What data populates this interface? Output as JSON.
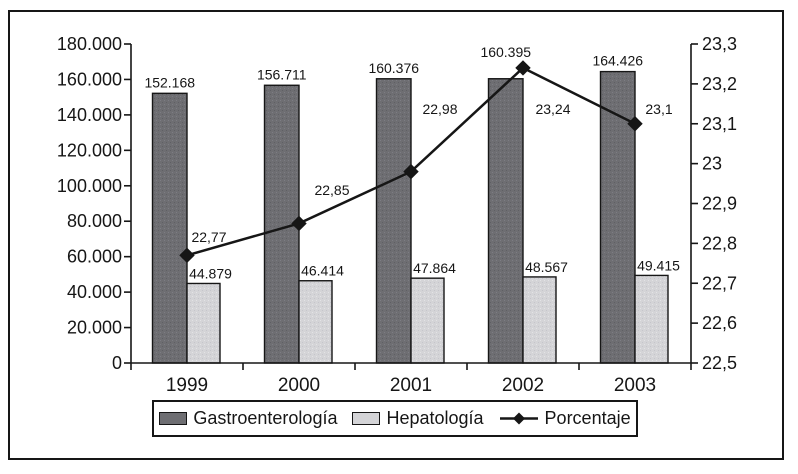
{
  "chart_data": {
    "type": "bar+line",
    "title": "",
    "categories": [
      "1999",
      "2000",
      "2001",
      "2002",
      "2003"
    ],
    "series": [
      {
        "name": "Gastroenterología",
        "type": "bar",
        "axis": "left",
        "values": [
          152168,
          156711,
          160376,
          160395,
          164426
        ],
        "value_labels": [
          "152.168",
          "156.711",
          "160.376",
          "160.395",
          "164.426"
        ],
        "color": "#6e6e72"
      },
      {
        "name": "Hepatología",
        "type": "bar",
        "axis": "left",
        "values": [
          44879,
          46414,
          47864,
          48567,
          49415
        ],
        "value_labels": [
          "44.879",
          "46.414",
          "47.864",
          "48.567",
          "49.415"
        ],
        "color": "#d4d4d7"
      },
      {
        "name": "Porcentaje",
        "type": "line",
        "axis": "right",
        "values": [
          22.77,
          22.85,
          22.98,
          23.24,
          23.1
        ],
        "value_labels": [
          "22,77",
          "22,85",
          "22,98",
          "23,24",
          "23,1"
        ],
        "color": "#161616"
      }
    ],
    "left_axis": {
      "min": 0,
      "max": 180000,
      "tick_step": 20000,
      "tick_labels": [
        "0",
        "20.000",
        "40.000",
        "60.000",
        "80.000",
        "100.000",
        "120.000",
        "140.000",
        "160.000",
        "180.000"
      ]
    },
    "right_axis": {
      "min": 22.5,
      "max": 23.3,
      "tick_step": 0.1,
      "tick_labels": [
        "22,5",
        "22,6",
        "22,7",
        "22,8",
        "22,9",
        "23",
        "23,1",
        "23,2",
        "23,3"
      ]
    },
    "grid": false,
    "legend": {
      "position": "bottom",
      "items": [
        "Gastroenterología",
        "Hepatología",
        "Porcentaje"
      ]
    },
    "colors": {
      "bar_dark": "#6e6e72",
      "bar_light": "#d4d4d7",
      "line": "#161616",
      "axis": "#161616",
      "background": "#ffffff"
    }
  }
}
